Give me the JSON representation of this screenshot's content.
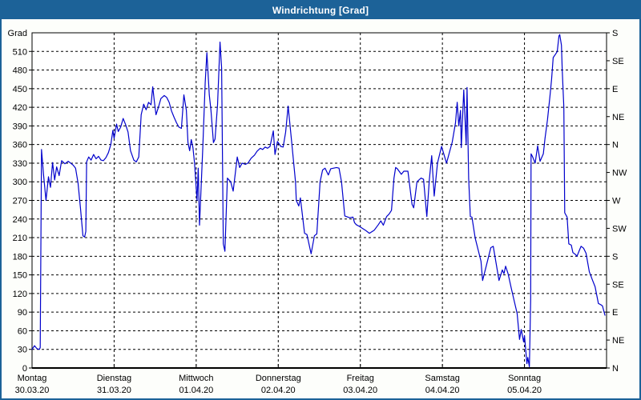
{
  "window": {
    "title": "Windrichtung [Grad]"
  },
  "colors": {
    "titlebar_bg": "#1c6298",
    "titlebar_text": "#ffffff",
    "page_border": "#1c6298",
    "page_bg": "#fdfefb",
    "plot_bg": "#ffffff",
    "grid": "#000000",
    "axis": "#000000",
    "line": "#0000cc"
  },
  "chart_data": {
    "type": "line",
    "title": "Windrichtung [Grad]",
    "grid": "dashed",
    "legend_position": "none",
    "y_left": {
      "label": "Grad",
      "min": 0,
      "max": 540,
      "tick_step": 30,
      "tick_labels": [
        "0",
        "30",
        "60",
        "90",
        "120",
        "150",
        "180",
        "210",
        "240",
        "270",
        "300",
        "330",
        "360",
        "390",
        "420",
        "450",
        "480",
        "510"
      ]
    },
    "y_right": {
      "tick_step": 45,
      "labels_top_to_bottom": [
        "S",
        "SE",
        "E",
        "NE",
        "N",
        "NW",
        "W",
        "SW",
        "S",
        "SE",
        "E",
        "NE",
        "N"
      ]
    },
    "x_axis": {
      "days": [
        {
          "name": "Montag",
          "date": "30.03.20"
        },
        {
          "name": "Dienstag",
          "date": "31.03.20"
        },
        {
          "name": "Mittwoch",
          "date": "01.04.20"
        },
        {
          "name": "Donnerstag",
          "date": "02.04.20"
        },
        {
          "name": "Freitag",
          "date": "03.04.20"
        },
        {
          "name": "Samstag",
          "date": "04.04.20"
        },
        {
          "name": "Sonntag",
          "date": "05.04.20"
        }
      ]
    },
    "series": [
      {
        "name": "Windrichtung",
        "color": "#0000cc",
        "points": [
          [
            0,
            30
          ],
          [
            0.03,
            36
          ],
          [
            0.06,
            31
          ],
          [
            0.09,
            30
          ],
          [
            0.1,
            33
          ],
          [
            0.115,
            352
          ],
          [
            0.14,
            312
          ],
          [
            0.17,
            270
          ],
          [
            0.2,
            308
          ],
          [
            0.225,
            291
          ],
          [
            0.25,
            331
          ],
          [
            0.275,
            303
          ],
          [
            0.3,
            324
          ],
          [
            0.33,
            310
          ],
          [
            0.36,
            334
          ],
          [
            0.4,
            329
          ],
          [
            0.44,
            333
          ],
          [
            0.47,
            330
          ],
          [
            0.5,
            327
          ],
          [
            0.53,
            322
          ],
          [
            0.56,
            298
          ],
          [
            0.59,
            258
          ],
          [
            0.62,
            213
          ],
          [
            0.64,
            211
          ],
          [
            0.655,
            220
          ],
          [
            0.665,
            332
          ],
          [
            0.69,
            340
          ],
          [
            0.72,
            335
          ],
          [
            0.75,
            344
          ],
          [
            0.78,
            337
          ],
          [
            0.81,
            341
          ],
          [
            0.84,
            335
          ],
          [
            0.87,
            334
          ],
          [
            0.9,
            339
          ],
          [
            0.93,
            347
          ],
          [
            0.96,
            360
          ],
          [
            0.985,
            383
          ],
          [
            1,
            370
          ],
          [
            1.03,
            393
          ],
          [
            1.05,
            381
          ],
          [
            1.08,
            388
          ],
          [
            1.11,
            402
          ],
          [
            1.14,
            392
          ],
          [
            1.17,
            380
          ],
          [
            1.2,
            350
          ],
          [
            1.24,
            335
          ],
          [
            1.27,
            332
          ],
          [
            1.3,
            340
          ],
          [
            1.33,
            408
          ],
          [
            1.36,
            425
          ],
          [
            1.39,
            416
          ],
          [
            1.42,
            428
          ],
          [
            1.45,
            424
          ],
          [
            1.47,
            453
          ],
          [
            1.49,
            430
          ],
          [
            1.51,
            408
          ],
          [
            1.54,
            420
          ],
          [
            1.57,
            434
          ],
          [
            1.61,
            439
          ],
          [
            1.64,
            436
          ],
          [
            1.67,
            428
          ],
          [
            1.7,
            414
          ],
          [
            1.73,
            404
          ],
          [
            1.76,
            395
          ],
          [
            1.79,
            388
          ],
          [
            1.82,
            386
          ],
          [
            1.85,
            440
          ],
          [
            1.88,
            415
          ],
          [
            1.9,
            363
          ],
          [
            1.92,
            350
          ],
          [
            1.94,
            368
          ],
          [
            1.96,
            355
          ],
          [
            1.98,
            330
          ],
          [
            2.01,
            270
          ],
          [
            2.025,
            322
          ],
          [
            2.04,
            230
          ],
          [
            2.08,
            355
          ],
          [
            2.11,
            460
          ],
          [
            2.13,
            508
          ],
          [
            2.16,
            440
          ],
          [
            2.18,
            415
          ],
          [
            2.21,
            363
          ],
          [
            2.23,
            369
          ],
          [
            2.26,
            424
          ],
          [
            2.29,
            525
          ],
          [
            2.31,
            483
          ],
          [
            2.33,
            200
          ],
          [
            2.35,
            188
          ],
          [
            2.38,
            306
          ],
          [
            2.42,
            300
          ],
          [
            2.45,
            285
          ],
          [
            2.5,
            340
          ],
          [
            2.53,
            323
          ],
          [
            2.56,
            330
          ],
          [
            2.6,
            328
          ],
          [
            2.63,
            330
          ],
          [
            2.67,
            338
          ],
          [
            2.71,
            343
          ],
          [
            2.74,
            349
          ],
          [
            2.78,
            354
          ],
          [
            2.81,
            352
          ],
          [
            2.84,
            356
          ],
          [
            2.87,
            354
          ],
          [
            2.9,
            357
          ],
          [
            2.94,
            382
          ],
          [
            2.96,
            344
          ],
          [
            2.99,
            365
          ],
          [
            3.03,
            357
          ],
          [
            3.06,
            356
          ],
          [
            3.09,
            380
          ],
          [
            3.12,
            422
          ],
          [
            3.17,
            355
          ],
          [
            3.21,
            300
          ],
          [
            3.22,
            270
          ],
          [
            3.25,
            261
          ],
          [
            3.27,
            274
          ],
          [
            3.32,
            217
          ],
          [
            3.35,
            215
          ],
          [
            3.4,
            184
          ],
          [
            3.44,
            213
          ],
          [
            3.47,
            216
          ],
          [
            3.51,
            300
          ],
          [
            3.54,
            319
          ],
          [
            3.57,
            322
          ],
          [
            3.61,
            311
          ],
          [
            3.64,
            321
          ],
          [
            3.71,
            323
          ],
          [
            3.74,
            322
          ],
          [
            3.77,
            300
          ],
          [
            3.81,
            245
          ],
          [
            3.87,
            242
          ],
          [
            3.91,
            243
          ],
          [
            3.93,
            234
          ],
          [
            3.95,
            231
          ],
          [
            3.99,
            228
          ],
          [
            4.06,
            222
          ],
          [
            4.11,
            217
          ],
          [
            4.17,
            222
          ],
          [
            4.22,
            231
          ],
          [
            4.25,
            237
          ],
          [
            4.28,
            230
          ],
          [
            4.32,
            244
          ],
          [
            4.35,
            248
          ],
          [
            4.38,
            254
          ],
          [
            4.41,
            306
          ],
          [
            4.43,
            323
          ],
          [
            4.45,
            321
          ],
          [
            4.5,
            312
          ],
          [
            4.53,
            317
          ],
          [
            4.58,
            317
          ],
          [
            4.63,
            264
          ],
          [
            4.65,
            258
          ],
          [
            4.69,
            300
          ],
          [
            4.74,
            306
          ],
          [
            4.77,
            304
          ],
          [
            4.81,
            244
          ],
          [
            4.84,
            303
          ],
          [
            4.87,
            342
          ],
          [
            4.9,
            277
          ],
          [
            4.94,
            330
          ],
          [
            4.99,
            357
          ],
          [
            5.05,
            330
          ],
          [
            5.12,
            364
          ],
          [
            5.16,
            395
          ],
          [
            5.18,
            428
          ],
          [
            5.2,
            390
          ],
          [
            5.22,
            415
          ],
          [
            5.23,
            355
          ],
          [
            5.26,
            448
          ],
          [
            5.29,
            360
          ],
          [
            5.3,
            452
          ],
          [
            5.32,
            306
          ],
          [
            5.34,
            244
          ],
          [
            5.36,
            243
          ],
          [
            5.4,
            209
          ],
          [
            5.44,
            188
          ],
          [
            5.47,
            172
          ],
          [
            5.49,
            141
          ],
          [
            5.53,
            162
          ],
          [
            5.59,
            194
          ],
          [
            5.62,
            196
          ],
          [
            5.69,
            141
          ],
          [
            5.73,
            158
          ],
          [
            5.75,
            152
          ],
          [
            5.77,
            164
          ],
          [
            5.8,
            152
          ],
          [
            5.84,
            128
          ],
          [
            5.88,
            105
          ],
          [
            5.91,
            88
          ],
          [
            5.94,
            46
          ],
          [
            5.96,
            62
          ],
          [
            5.99,
            42
          ],
          [
            6,
            52
          ],
          [
            6.03,
            7
          ],
          [
            6.04,
            17
          ],
          [
            6.06,
            2
          ],
          [
            6.075,
            110
          ],
          [
            6.08,
            345
          ],
          [
            6.1,
            340
          ],
          [
            6.13,
            330
          ],
          [
            6.16,
            358
          ],
          [
            6.19,
            333
          ],
          [
            6.23,
            345
          ],
          [
            6.25,
            370
          ],
          [
            6.28,
            400
          ],
          [
            6.31,
            437
          ],
          [
            6.33,
            465
          ],
          [
            6.35,
            500
          ],
          [
            6.38,
            506
          ],
          [
            6.4,
            510
          ],
          [
            6.42,
            535
          ],
          [
            6.43,
            537
          ],
          [
            6.45,
            520
          ],
          [
            6.46,
            480
          ],
          [
            6.48,
            420
          ],
          [
            6.49,
            250
          ],
          [
            6.52,
            243
          ],
          [
            6.54,
            200
          ],
          [
            6.57,
            198
          ],
          [
            6.59,
            186
          ],
          [
            6.62,
            183
          ],
          [
            6.64,
            180
          ],
          [
            6.67,
            190
          ],
          [
            6.69,
            196
          ],
          [
            6.72,
            193
          ],
          [
            6.75,
            185
          ],
          [
            6.79,
            155
          ],
          [
            6.83,
            141
          ],
          [
            6.86,
            131
          ],
          [
            6.9,
            104
          ],
          [
            6.93,
            102
          ],
          [
            6.95,
            100
          ],
          [
            6.98,
            85
          ]
        ]
      }
    ]
  }
}
